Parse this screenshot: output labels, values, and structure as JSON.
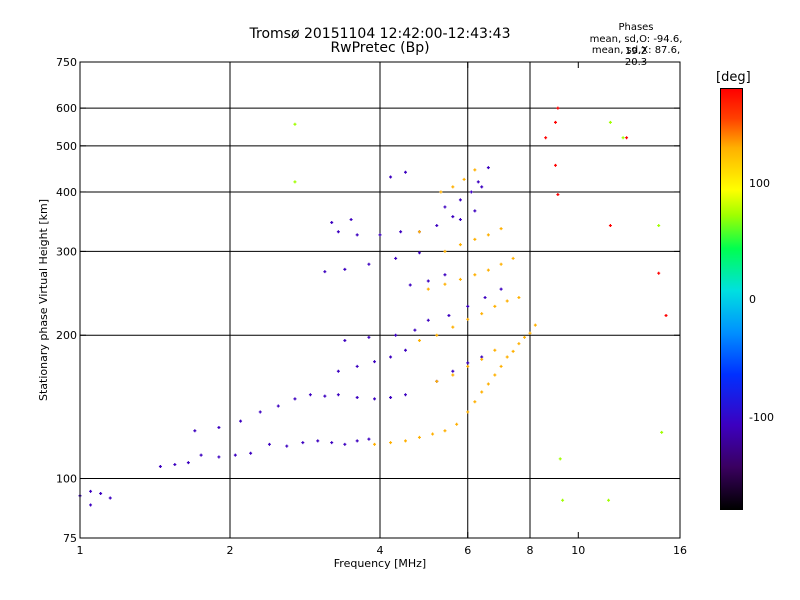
{
  "chart_data": {
    "type": "scatter",
    "title": "Tromsø 20151104 12:42:00-12:43:43",
    "subtitle": "RwPretec (Bp)",
    "xlabel": "Frequency [MHz]",
    "ylabel": "Stationary phase Virtual Height [km]",
    "x_scale": "log",
    "y_scale": "log",
    "xlim": [
      1,
      16
    ],
    "ylim": [
      75,
      750
    ],
    "x_ticks": [
      1,
      2,
      4,
      6,
      8,
      10,
      16
    ],
    "y_ticks": [
      75,
      100,
      200,
      300,
      400,
      500,
      600,
      750
    ],
    "x_grid": [
      2,
      4,
      6,
      8
    ],
    "y_grid": [
      100,
      200,
      300,
      400,
      500,
      600
    ],
    "grid": true,
    "color_by": "phase",
    "colorbar": {
      "label": "[deg]",
      "ticks": [
        100,
        0,
        -100
      ],
      "range": [
        -180,
        180
      ],
      "colors": [
        "#000000",
        "#3a0060",
        "#3c00c0",
        "#0030ff",
        "#0090ff",
        "#00e0e0",
        "#00ff50",
        "#a0ff00",
        "#ffff00",
        "#ffb000",
        "#ff4000",
        "#ff0000"
      ]
    },
    "phases_box": {
      "heading": "Phases",
      "line1": "mean, sd,O: -94.6, 19.2",
      "line2": "mean, sd,X:  87.6, 20.3"
    },
    "series": [
      {
        "trace": "O",
        "phase_deg": -100,
        "points": [
          [
            1.0,
            92
          ],
          [
            1.05,
            94
          ],
          [
            1.1,
            93
          ],
          [
            1.05,
            88
          ],
          [
            1.15,
            91
          ],
          [
            1.45,
            106
          ],
          [
            1.55,
            107
          ],
          [
            1.65,
            108
          ],
          [
            1.75,
            112
          ],
          [
            1.9,
            111
          ],
          [
            2.05,
            112
          ],
          [
            2.2,
            113
          ],
          [
            2.4,
            118
          ],
          [
            2.6,
            117
          ],
          [
            2.8,
            119
          ],
          [
            3.0,
            120
          ],
          [
            3.2,
            119
          ],
          [
            3.4,
            118
          ],
          [
            3.6,
            120
          ],
          [
            3.8,
            121
          ],
          [
            1.7,
            126
          ],
          [
            1.9,
            128
          ],
          [
            2.1,
            132
          ],
          [
            2.3,
            138
          ],
          [
            2.5,
            142
          ],
          [
            2.7,
            147
          ],
          [
            2.9,
            150
          ],
          [
            3.1,
            149
          ],
          [
            3.3,
            150
          ],
          [
            3.6,
            148
          ],
          [
            3.9,
            147
          ],
          [
            4.2,
            148
          ],
          [
            4.5,
            150
          ],
          [
            3.3,
            168
          ],
          [
            3.6,
            172
          ],
          [
            3.9,
            176
          ],
          [
            4.2,
            180
          ],
          [
            4.5,
            186
          ],
          [
            3.4,
            195
          ],
          [
            3.8,
            198
          ],
          [
            4.3,
            200
          ],
          [
            4.7,
            205
          ],
          [
            3.1,
            272
          ],
          [
            3.4,
            275
          ],
          [
            3.8,
            282
          ],
          [
            4.3,
            290
          ],
          [
            4.8,
            298
          ],
          [
            3.3,
            330
          ],
          [
            3.6,
            325
          ],
          [
            4.0,
            325
          ],
          [
            4.4,
            330
          ],
          [
            4.8,
            330
          ],
          [
            5.2,
            340
          ],
          [
            5.6,
            355
          ],
          [
            4.2,
            430
          ],
          [
            4.5,
            440
          ],
          [
            3.2,
            345
          ],
          [
            3.5,
            350
          ]
        ]
      },
      {
        "trace": "O",
        "phase_deg": -120,
        "points": [
          [
            5.4,
            372
          ],
          [
            5.8,
            385
          ],
          [
            6.1,
            400
          ],
          [
            6.4,
            410
          ],
          [
            5.0,
            215
          ],
          [
            5.5,
            220
          ],
          [
            6.0,
            230
          ],
          [
            6.5,
            240
          ],
          [
            7.0,
            250
          ],
          [
            5.2,
            160
          ],
          [
            5.6,
            168
          ],
          [
            6.0,
            175
          ],
          [
            6.4,
            180
          ],
          [
            5.8,
            350
          ],
          [
            6.2,
            365
          ],
          [
            4.6,
            255
          ],
          [
            5.0,
            260
          ],
          [
            5.4,
            268
          ],
          [
            6.3,
            420
          ],
          [
            6.6,
            450
          ]
        ]
      },
      {
        "trace": "X",
        "phase_deg": 100,
        "points": [
          [
            3.9,
            118
          ],
          [
            4.2,
            119
          ],
          [
            4.5,
            120
          ],
          [
            4.8,
            122
          ],
          [
            5.1,
            124
          ],
          [
            5.4,
            126
          ],
          [
            5.7,
            130
          ],
          [
            6.0,
            138
          ],
          [
            6.2,
            145
          ],
          [
            6.4,
            152
          ],
          [
            6.6,
            158
          ],
          [
            6.8,
            165
          ],
          [
            7.0,
            172
          ],
          [
            7.2,
            180
          ],
          [
            7.4,
            185
          ],
          [
            7.6,
            192
          ],
          [
            7.8,
            198
          ],
          [
            8.0,
            202
          ],
          [
            8.2,
            210
          ],
          [
            4.8,
            195
          ],
          [
            5.2,
            200
          ],
          [
            5.6,
            208
          ],
          [
            6.0,
            216
          ],
          [
            6.4,
            222
          ],
          [
            6.8,
            230
          ],
          [
            7.2,
            236
          ],
          [
            7.6,
            240
          ],
          [
            5.0,
            250
          ],
          [
            5.4,
            256
          ],
          [
            5.8,
            262
          ],
          [
            6.2,
            268
          ],
          [
            6.6,
            274
          ],
          [
            7.0,
            282
          ],
          [
            7.4,
            290
          ],
          [
            5.4,
            300
          ],
          [
            5.8,
            310
          ],
          [
            6.2,
            318
          ],
          [
            6.6,
            325
          ],
          [
            7.0,
            335
          ],
          [
            5.3,
            400
          ],
          [
            5.6,
            410
          ],
          [
            5.9,
            425
          ],
          [
            6.2,
            445
          ],
          [
            4.8,
            330
          ],
          [
            5.2,
            160
          ],
          [
            5.6,
            165
          ],
          [
            6.0,
            172
          ],
          [
            6.4,
            178
          ],
          [
            6.8,
            186
          ]
        ]
      },
      {
        "trace": "other",
        "phase_deg": 160,
        "points": [
          [
            9.0,
            560
          ],
          [
            9.1,
            600
          ],
          [
            8.6,
            520
          ],
          [
            9.0,
            455
          ],
          [
            12.5,
            520
          ],
          [
            15.0,
            220
          ],
          [
            14.5,
            270
          ],
          [
            11.6,
            340
          ],
          [
            9.1,
            395
          ]
        ]
      },
      {
        "trace": "other",
        "phase_deg": 40,
        "points": [
          [
            2.7,
            555
          ],
          [
            2.7,
            420
          ],
          [
            14.5,
            340
          ],
          [
            11.6,
            560
          ],
          [
            12.3,
            520
          ],
          [
            14.7,
            125
          ],
          [
            11.5,
            90
          ],
          [
            9.2,
            110
          ],
          [
            9.3,
            90
          ]
        ]
      }
    ]
  }
}
